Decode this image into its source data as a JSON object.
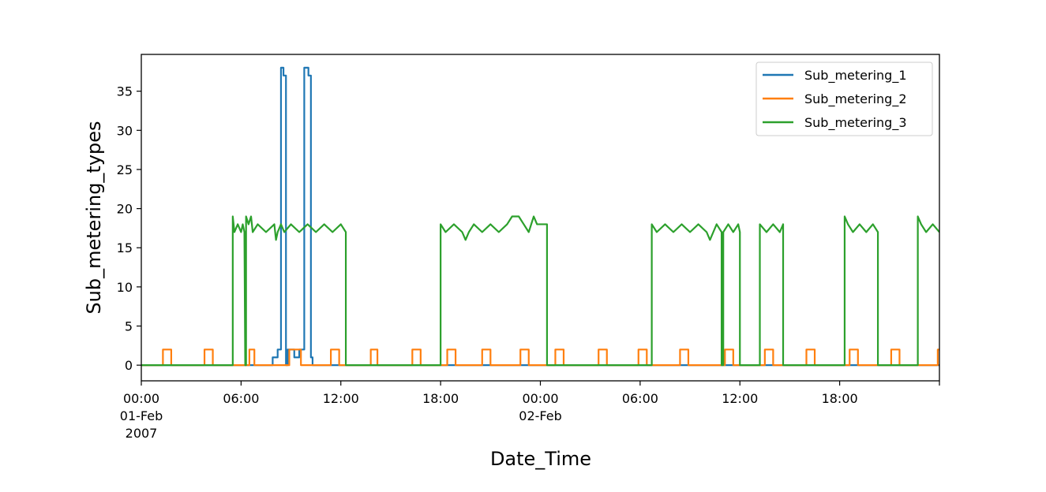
{
  "chart_data": {
    "type": "line",
    "xlabel": "Date_Time",
    "ylabel": "Sub_metering_types",
    "xlim": [
      "2007-02-01 00:00",
      "2007-02-03 00:00"
    ],
    "ylim": [
      -2,
      39.7
    ],
    "x_unit": "hours since 2007-02-01 00:00",
    "y_ticks": [
      "0",
      "5",
      "10",
      "15",
      "20",
      "25",
      "30",
      "35"
    ],
    "x_ticks": [
      {
        "label": "00:00",
        "sub": [
          "01-Feb",
          "2007"
        ],
        "at": "2007-02-01 00:00"
      },
      {
        "label": "06:00",
        "sub": [],
        "at": "2007-02-01 06:00"
      },
      {
        "label": "12:00",
        "sub": [],
        "at": "2007-02-01 12:00"
      },
      {
        "label": "18:00",
        "sub": [],
        "at": "2007-02-01 18:00"
      },
      {
        "label": "00:00",
        "sub": [
          "02-Feb"
        ],
        "at": "2007-02-02 00:00"
      },
      {
        "label": "06:00",
        "sub": [],
        "at": "2007-02-02 06:00"
      },
      {
        "label": "12:00",
        "sub": [],
        "at": "2007-02-02 12:00"
      },
      {
        "label": "18:00",
        "sub": [],
        "at": "2007-02-02 18:00"
      }
    ],
    "legend_position": "top-right",
    "series": [
      {
        "name": "Sub_metering_1",
        "color": "#1f77b4",
        "points": [
          [
            0,
            0
          ],
          [
            7.9,
            0
          ],
          [
            7.9,
            1
          ],
          [
            8.2,
            1
          ],
          [
            8.2,
            2
          ],
          [
            8.4,
            2
          ],
          [
            8.4,
            38
          ],
          [
            8.55,
            38
          ],
          [
            8.55,
            37
          ],
          [
            8.7,
            37
          ],
          [
            8.7,
            0
          ],
          [
            8.8,
            0
          ],
          [
            8.8,
            2
          ],
          [
            9.2,
            2
          ],
          [
            9.2,
            1
          ],
          [
            9.5,
            1
          ],
          [
            9.5,
            2
          ],
          [
            9.8,
            2
          ],
          [
            9.8,
            38
          ],
          [
            10.05,
            38
          ],
          [
            10.05,
            37
          ],
          [
            10.2,
            37
          ],
          [
            10.2,
            1
          ],
          [
            10.3,
            1
          ],
          [
            10.3,
            0
          ],
          [
            48,
            0
          ]
        ]
      },
      {
        "name": "Sub_metering_2",
        "color": "#ff7f0e",
        "points": [
          [
            0,
            0
          ],
          [
            1.3,
            0
          ],
          [
            1.3,
            2
          ],
          [
            1.8,
            2
          ],
          [
            1.8,
            0
          ],
          [
            3.8,
            0
          ],
          [
            3.8,
            2
          ],
          [
            4.3,
            2
          ],
          [
            4.3,
            0
          ],
          [
            6.5,
            0
          ],
          [
            6.5,
            2
          ],
          [
            6.8,
            2
          ],
          [
            6.8,
            0
          ],
          [
            8.9,
            0
          ],
          [
            8.9,
            2
          ],
          [
            9.6,
            2
          ],
          [
            9.6,
            0
          ],
          [
            11.4,
            0
          ],
          [
            11.4,
            2
          ],
          [
            11.9,
            2
          ],
          [
            11.9,
            0
          ],
          [
            13.8,
            0
          ],
          [
            13.8,
            2
          ],
          [
            14.2,
            2
          ],
          [
            14.2,
            0
          ],
          [
            16.3,
            0
          ],
          [
            16.3,
            2
          ],
          [
            16.8,
            2
          ],
          [
            16.8,
            0
          ],
          [
            18.4,
            0
          ],
          [
            18.4,
            2
          ],
          [
            18.9,
            2
          ],
          [
            18.9,
            0
          ],
          [
            20.5,
            0
          ],
          [
            20.5,
            2
          ],
          [
            21,
            2
          ],
          [
            21,
            0
          ],
          [
            22.8,
            0
          ],
          [
            22.8,
            2
          ],
          [
            23.3,
            2
          ],
          [
            23.3,
            0
          ],
          [
            24.9,
            0
          ],
          [
            24.9,
            2
          ],
          [
            25.4,
            2
          ],
          [
            25.4,
            0
          ],
          [
            27.5,
            0
          ],
          [
            27.5,
            2
          ],
          [
            28,
            2
          ],
          [
            28,
            0
          ],
          [
            29.9,
            0
          ],
          [
            29.9,
            2
          ],
          [
            30.4,
            2
          ],
          [
            30.4,
            0
          ],
          [
            32.4,
            0
          ],
          [
            32.4,
            2
          ],
          [
            32.9,
            2
          ],
          [
            32.9,
            0
          ],
          [
            35.1,
            0
          ],
          [
            35.1,
            2
          ],
          [
            35.6,
            2
          ],
          [
            35.6,
            0
          ],
          [
            37.5,
            0
          ],
          [
            37.5,
            2
          ],
          [
            38,
            2
          ],
          [
            38,
            0
          ],
          [
            40,
            0
          ],
          [
            40,
            2
          ],
          [
            40.5,
            2
          ],
          [
            40.5,
            0
          ],
          [
            42.6,
            0
          ],
          [
            42.6,
            2
          ],
          [
            43.1,
            2
          ],
          [
            43.1,
            0
          ],
          [
            45.1,
            0
          ],
          [
            45.1,
            2
          ],
          [
            45.6,
            2
          ],
          [
            45.6,
            0
          ],
          [
            47.9,
            0
          ],
          [
            47.9,
            2
          ],
          [
            48,
            2
          ]
        ]
      },
      {
        "name": "Sub_metering_3",
        "color": "#2ca02c",
        "points": [
          [
            0,
            0
          ],
          [
            5.5,
            0
          ],
          [
            5.5,
            19
          ],
          [
            5.6,
            17
          ],
          [
            5.8,
            18
          ],
          [
            6.0,
            17
          ],
          [
            6.1,
            18
          ],
          [
            6.2,
            17
          ],
          [
            6.25,
            0
          ],
          [
            6.3,
            0
          ],
          [
            6.3,
            19
          ],
          [
            6.45,
            18
          ],
          [
            6.6,
            19
          ],
          [
            6.7,
            17
          ],
          [
            7.0,
            18
          ],
          [
            7.5,
            17
          ],
          [
            8.0,
            18
          ],
          [
            8.1,
            16
          ],
          [
            8.2,
            17
          ],
          [
            8.4,
            18
          ],
          [
            8.6,
            17
          ],
          [
            9.0,
            18
          ],
          [
            9.5,
            17
          ],
          [
            10.0,
            18
          ],
          [
            10.5,
            17
          ],
          [
            11.0,
            18
          ],
          [
            11.5,
            17
          ],
          [
            12.0,
            18
          ],
          [
            12.3,
            17
          ],
          [
            12.3,
            0
          ],
          [
            18.0,
            0
          ],
          [
            18.0,
            18
          ],
          [
            18.3,
            17
          ],
          [
            18.8,
            18
          ],
          [
            19.3,
            17
          ],
          [
            19.5,
            16
          ],
          [
            19.7,
            17
          ],
          [
            20.0,
            18
          ],
          [
            20.5,
            17
          ],
          [
            21.0,
            18
          ],
          [
            21.5,
            17
          ],
          [
            22.0,
            18
          ],
          [
            22.3,
            19
          ],
          [
            22.7,
            19
          ],
          [
            23.0,
            18
          ],
          [
            23.3,
            17
          ],
          [
            23.6,
            19
          ],
          [
            23.8,
            18
          ],
          [
            24.4,
            18
          ],
          [
            24.4,
            0
          ],
          [
            30.7,
            0
          ],
          [
            30.7,
            18
          ],
          [
            31.0,
            17
          ],
          [
            31.5,
            18
          ],
          [
            32.0,
            17
          ],
          [
            32.5,
            18
          ],
          [
            33.0,
            17
          ],
          [
            33.5,
            18
          ],
          [
            34.0,
            17
          ],
          [
            34.2,
            16
          ],
          [
            34.4,
            17
          ],
          [
            34.6,
            18
          ],
          [
            34.9,
            17
          ],
          [
            34.9,
            0
          ],
          [
            35.0,
            0
          ],
          [
            35.0,
            17
          ],
          [
            35.3,
            18
          ],
          [
            35.6,
            17
          ],
          [
            35.9,
            18
          ],
          [
            36.0,
            17
          ],
          [
            36.0,
            0
          ],
          [
            37.2,
            0
          ],
          [
            37.2,
            18
          ],
          [
            37.6,
            17
          ],
          [
            38.0,
            18
          ],
          [
            38.4,
            17
          ],
          [
            38.6,
            18
          ],
          [
            38.6,
            0
          ],
          [
            42.3,
            0
          ],
          [
            42.3,
            19
          ],
          [
            42.5,
            18
          ],
          [
            42.8,
            17
          ],
          [
            43.2,
            18
          ],
          [
            43.6,
            17
          ],
          [
            44.0,
            18
          ],
          [
            44.3,
            17
          ],
          [
            44.3,
            0
          ],
          [
            46.7,
            0
          ],
          [
            46.7,
            19
          ],
          [
            46.9,
            18
          ],
          [
            47.2,
            17
          ],
          [
            47.6,
            18
          ],
          [
            48,
            17
          ]
        ]
      }
    ]
  }
}
